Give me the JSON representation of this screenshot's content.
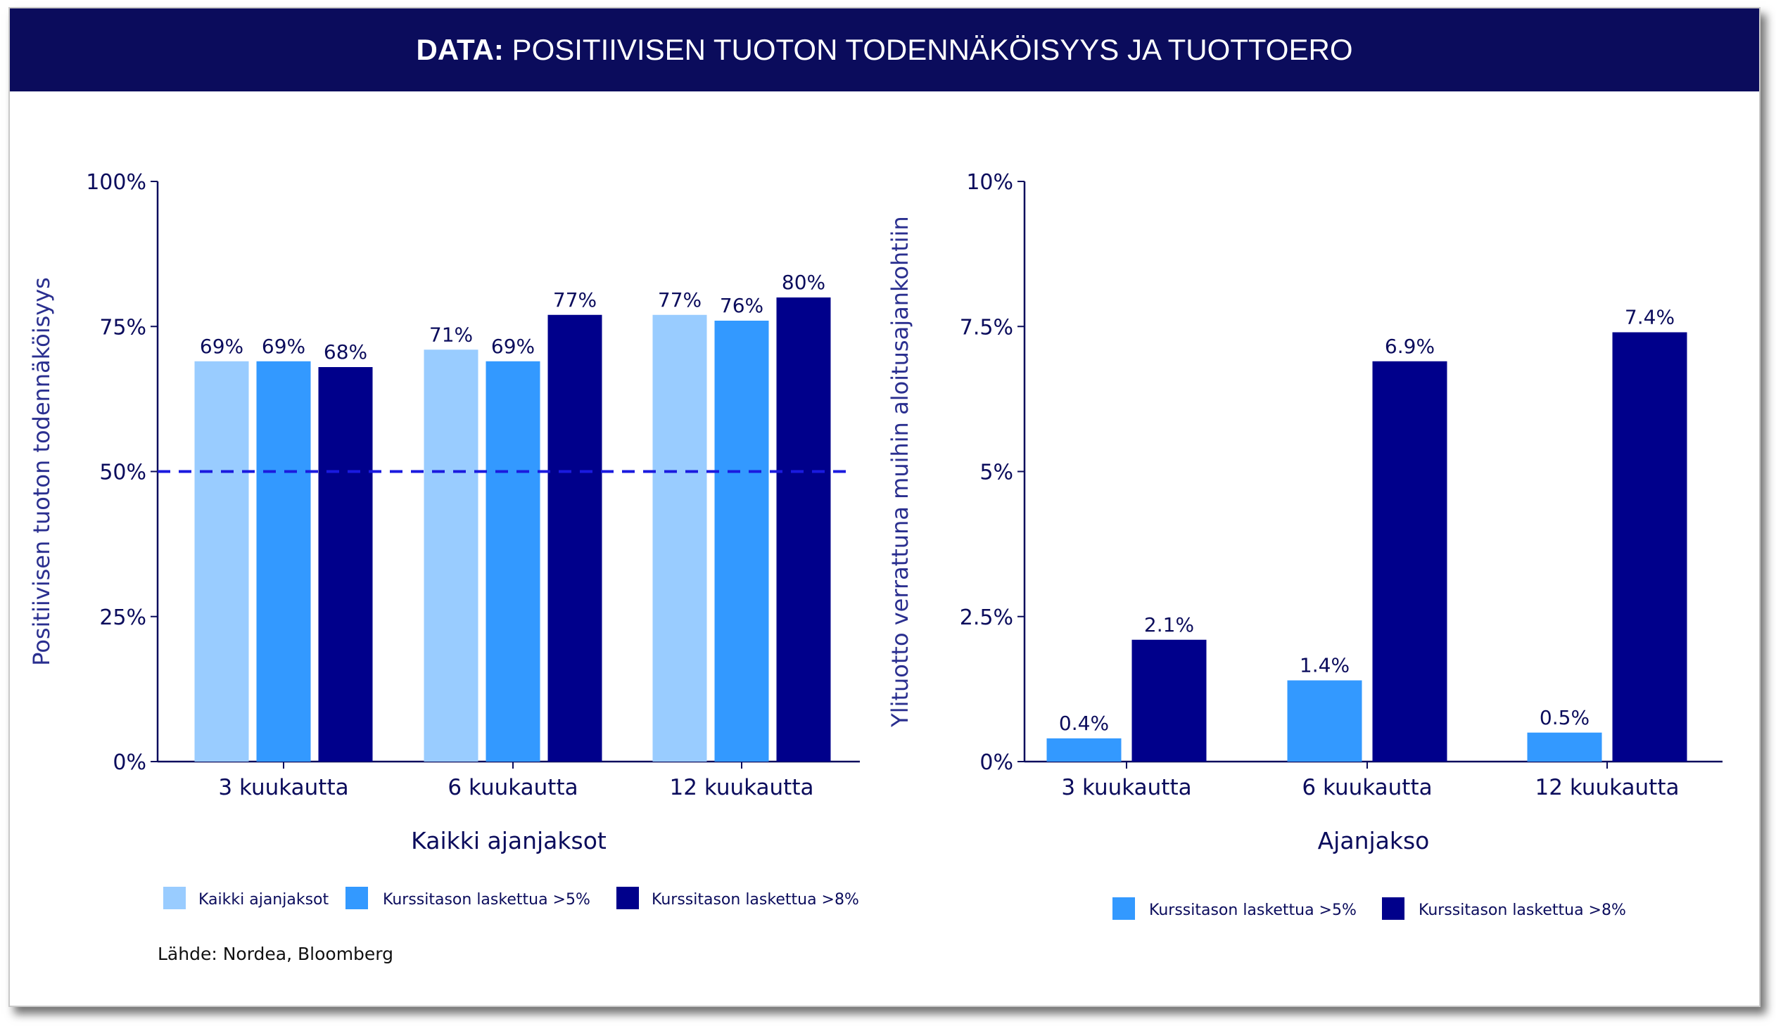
{
  "header": {
    "label_bold": "DATA:",
    "label_rest": " POSITIIVISEN TUOTON TODENNÄKÖISYYS JA TUOTTOERO",
    "bg_color": "#0b0c5c"
  },
  "source_note": "Lähde: Nordea, Bloomberg",
  "chart_data": [
    {
      "type": "bar",
      "title": "",
      "xlabel": "Kaikki ajanjaksot",
      "ylabel": "Positiivisen tuoton todennäköisyys",
      "ylim": [
        0,
        100
      ],
      "yticks": [
        0,
        25,
        50,
        75,
        100
      ],
      "ytick_labels": [
        "0%",
        "25%",
        "50%",
        "75%",
        "100%"
      ],
      "categories": [
        "3 kuukautta",
        "6 kuukautta",
        "12 kuukautta"
      ],
      "reference_line": {
        "value": 50,
        "style": "dashed",
        "color": "#1a1adf"
      },
      "legend_position": "bottom",
      "series": [
        {
          "name": "Kaikki ajanjaksot",
          "color": "#99ccff",
          "values": [
            69,
            71,
            77
          ],
          "labels": [
            "69%",
            "71%",
            "77%"
          ]
        },
        {
          "name": "Kurssitason laskettua >5%",
          "color": "#3399ff",
          "values": [
            69,
            69,
            76
          ],
          "labels": [
            "69%",
            "69%",
            "76%"
          ]
        },
        {
          "name": "Kurssitason laskettua >8%",
          "color": "#00008b",
          "values": [
            68,
            77,
            80
          ],
          "labels": [
            "68%",
            "77%",
            "80%"
          ]
        }
      ]
    },
    {
      "type": "bar",
      "title": "",
      "xlabel": "Ajanjakso",
      "ylabel": "Ylituotto verrattuna muihin aloitusajankohtiin",
      "ylim": [
        0,
        10
      ],
      "yticks": [
        0,
        2.5,
        5,
        7.5,
        10
      ],
      "ytick_labels": [
        "0%",
        "2.5%",
        "5%",
        "7.5%",
        "10%"
      ],
      "categories": [
        "3 kuukautta",
        "6 kuukautta",
        "12 kuukautta"
      ],
      "legend_position": "bottom",
      "series": [
        {
          "name": "Kurssitason laskettua >5%",
          "color": "#3399ff",
          "values": [
            0.4,
            1.4,
            0.5
          ],
          "labels": [
            "0.4%",
            "1.4%",
            "0.5%"
          ]
        },
        {
          "name": "Kurssitason laskettua >8%",
          "color": "#00008b",
          "values": [
            2.1,
            6.9,
            7.4
          ],
          "labels": [
            "2.1%",
            "6.9%",
            "7.4%"
          ]
        }
      ]
    }
  ]
}
